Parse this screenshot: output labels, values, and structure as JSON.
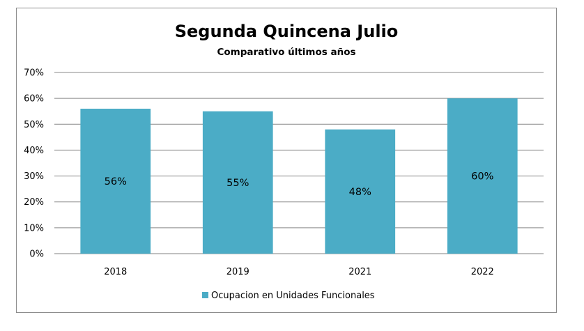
{
  "chart_data": {
    "type": "bar",
    "title": "Segunda Quincena Julio",
    "subtitle": "Comparativo últimos años",
    "categories": [
      "2018",
      "2019",
      "2021",
      "2022"
    ],
    "series": [
      {
        "name": "Ocupacion en Unidades Funcionales",
        "values": [
          56,
          55,
          48,
          60
        ],
        "labels": [
          "56%",
          "55%",
          "48%",
          "60%"
        ],
        "color": "#4bacc6"
      }
    ],
    "xlabel": "",
    "ylabel": "",
    "ylim": [
      0,
      70
    ],
    "yticks": [
      0,
      10,
      20,
      30,
      40,
      50,
      60,
      70
    ],
    "ytick_labels": [
      "0%",
      "10%",
      "20%",
      "30%",
      "40%",
      "50%",
      "60%",
      "70%"
    ],
    "grid": true,
    "legend_position": "bottom"
  },
  "colors": {
    "bar": "#4bacc6",
    "grid": "#888888",
    "frame": "#8c8c8c"
  }
}
